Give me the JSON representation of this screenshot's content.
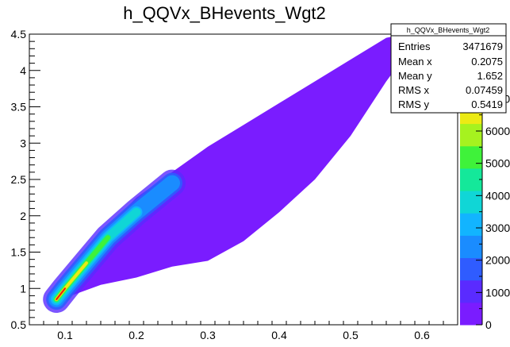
{
  "chart_data": {
    "type": "heatmap",
    "title": "h_QQVx_BHevents_Wgt2",
    "xlim": [
      0.05,
      0.65
    ],
    "ylim": [
      0.5,
      4.5
    ],
    "x_ticks": [
      "0.1",
      "0.2",
      "0.3",
      "0.4",
      "0.5",
      "0.6"
    ],
    "x_tick_values": [
      0.1,
      0.2,
      0.3,
      0.4,
      0.5,
      0.6
    ],
    "y_ticks": [
      "0.5",
      "1",
      "1.5",
      "2",
      "2.5",
      "3",
      "3.5",
      "4",
      "4.5"
    ],
    "y_tick_values": [
      0.5,
      1,
      1.5,
      2,
      2.5,
      3,
      3.5,
      4,
      4.5
    ],
    "colorbar": {
      "min": 0,
      "max": 9000,
      "tick_labels": [
        "0",
        "1000",
        "2000",
        "3000",
        "4000",
        "5000",
        "6000",
        "7000"
      ],
      "tick_values": [
        0,
        1000,
        2000,
        3000,
        4000,
        5000,
        6000,
        7000
      ],
      "palette": [
        "#7a1cff",
        "#5a2bff",
        "#2f5cff",
        "#1a8cff",
        "#12b4ff",
        "#10d6d6",
        "#14e89a",
        "#3ff23a",
        "#a6f21f",
        "#ecea14",
        "#ffb21a",
        "#ff6a10",
        "#e51e0e"
      ]
    },
    "grid": false,
    "stats": {
      "name": "h_QQVx_BHevents_Wgt2",
      "rows": [
        {
          "label": "Entries",
          "value": "3471679"
        },
        {
          "label": "Mean x",
          "value": "0.2075"
        },
        {
          "label": "Mean y",
          "value": "1.652"
        },
        {
          "label": "RMS x",
          "value": "0.07459"
        },
        {
          "label": "RMS y",
          "value": "0.5419"
        }
      ]
    },
    "distribution": {
      "upper_edge": [
        [
          0.085,
          0.82
        ],
        [
          0.1,
          1.05
        ],
        [
          0.15,
          1.75
        ],
        [
          0.2,
          2.25
        ],
        [
          0.25,
          2.6
        ],
        [
          0.3,
          2.95
        ],
        [
          0.35,
          3.25
        ],
        [
          0.4,
          3.55
        ],
        [
          0.45,
          3.85
        ],
        [
          0.5,
          4.15
        ],
        [
          0.55,
          4.45
        ],
        [
          0.575,
          4.5
        ]
      ],
      "lower_edge": [
        [
          0.575,
          4.5
        ],
        [
          0.58,
          4.25
        ],
        [
          0.55,
          3.85
        ],
        [
          0.5,
          3.1
        ],
        [
          0.45,
          2.5
        ],
        [
          0.4,
          2.05
        ],
        [
          0.35,
          1.65
        ],
        [
          0.3,
          1.38
        ],
        [
          0.25,
          1.3
        ],
        [
          0.2,
          1.15
        ],
        [
          0.15,
          1.05
        ],
        [
          0.1,
          0.87
        ],
        [
          0.085,
          0.82
        ]
      ],
      "ridge": [
        [
          0.088,
          0.85
        ],
        [
          0.1,
          1.0
        ],
        [
          0.13,
          1.35
        ],
        [
          0.16,
          1.7
        ],
        [
          0.2,
          2.05
        ],
        [
          0.25,
          2.45
        ]
      ]
    }
  }
}
